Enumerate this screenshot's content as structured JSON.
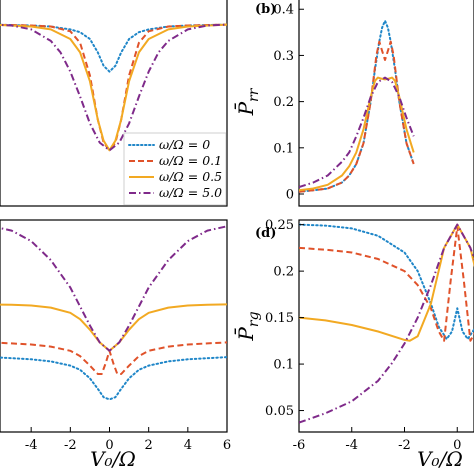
{
  "colors": {
    "omega_0": "#1f86c8",
    "omega_0_1": "#e0522a",
    "omega_0_5": "#f2a922",
    "omega_5_0": "#7f2a8a"
  },
  "chart_data": [
    {
      "panel": "a",
      "type": "line",
      "panel_label": "",
      "xlim": [
        -6,
        6
      ],
      "ylim": [
        0,
        1
      ],
      "xticks": [],
      "yticks": [],
      "xlabel": "",
      "ylabel": "",
      "legend_position": "bottom-right",
      "series": [
        {
          "name": "ω/Ω = 0",
          "style": "dotted",
          "color_key": "omega_0",
          "x": [
            -6,
            -4,
            -3,
            -2,
            -1.5,
            -1,
            -0.6,
            -0.3,
            0,
            0.3,
            0.6,
            1,
            1.5,
            2,
            3,
            4,
            6
          ],
          "y": [
            0.945,
            0.94,
            0.935,
            0.92,
            0.905,
            0.87,
            0.8,
            0.73,
            0.7,
            0.73,
            0.8,
            0.87,
            0.905,
            0.92,
            0.935,
            0.94,
            0.945
          ]
        },
        {
          "name": "ω/Ω = 0.1",
          "style": "dashed",
          "color_key": "omega_0_1",
          "x": [
            -6,
            -4,
            -3,
            -2,
            -1.5,
            -1,
            -0.6,
            -0.3,
            0,
            0.3,
            0.6,
            1,
            1.5,
            2,
            3,
            4,
            6
          ],
          "y": [
            0.945,
            0.94,
            0.935,
            0.91,
            0.85,
            0.68,
            0.45,
            0.33,
            0.29,
            0.33,
            0.45,
            0.68,
            0.85,
            0.91,
            0.935,
            0.94,
            0.945
          ]
        },
        {
          "name": "ω/Ω = 0.5",
          "style": "solid",
          "color_key": "omega_0_5",
          "x": [
            -6,
            -4,
            -3,
            -2,
            -1.5,
            -1,
            -0.6,
            -0.3,
            0,
            0.3,
            0.6,
            1,
            1.5,
            2,
            3,
            4,
            6
          ],
          "y": [
            0.945,
            0.935,
            0.92,
            0.87,
            0.8,
            0.65,
            0.45,
            0.34,
            0.29,
            0.34,
            0.45,
            0.65,
            0.8,
            0.87,
            0.92,
            0.935,
            0.945
          ]
        },
        {
          "name": "ω/Ω = 5.0",
          "style": "dashdot",
          "color_key": "omega_5_0",
          "x": [
            -6,
            -5,
            -4,
            -3,
            -2.5,
            -2,
            -1.5,
            -1,
            -0.5,
            0,
            0.5,
            1,
            1.5,
            2,
            2.5,
            3,
            4,
            5,
            6
          ],
          "y": [
            0.945,
            0.94,
            0.92,
            0.86,
            0.8,
            0.7,
            0.57,
            0.43,
            0.33,
            0.29,
            0.33,
            0.43,
            0.57,
            0.7,
            0.8,
            0.86,
            0.92,
            0.94,
            0.945
          ]
        }
      ]
    },
    {
      "panel": "b",
      "type": "line",
      "panel_label": "(b)",
      "xlim": [
        -6,
        6
      ],
      "ylim": [
        0,
        0.42
      ],
      "xticks": [],
      "yticks": [
        0,
        0.1,
        0.2,
        0.3,
        0.4
      ],
      "ytick_labels": [
        "0",
        "0.1",
        "0.2",
        "0.3",
        "0.4"
      ],
      "xlabel": "",
      "ylabel": "P̄",
      "ylabel_sub": "rr",
      "series": [
        {
          "name": "ω/Ω = 0",
          "style": "dotted",
          "color_key": "omega_0",
          "x": [
            -6,
            -5,
            -4,
            -3,
            -2.5,
            -2,
            -1.5,
            -1,
            -0.7,
            -0.4,
            -0.2,
            0,
            0.2,
            0.4,
            0.7,
            1,
            1.5,
            2
          ],
          "y": [
            0.005,
            0.008,
            0.012,
            0.025,
            0.04,
            0.065,
            0.11,
            0.2,
            0.27,
            0.33,
            0.36,
            0.375,
            0.36,
            0.33,
            0.27,
            0.2,
            0.11,
            0.065
          ]
        },
        {
          "name": "ω/Ω = 0.1",
          "style": "dashed",
          "color_key": "omega_0_1",
          "x": [
            -6,
            -5,
            -4,
            -3,
            -2.5,
            -2,
            -1.5,
            -1,
            -0.6,
            -0.4,
            -0.2,
            0,
            0.2,
            0.4,
            0.6,
            1,
            1.5,
            2
          ],
          "y": [
            0.005,
            0.008,
            0.012,
            0.025,
            0.04,
            0.065,
            0.11,
            0.2,
            0.3,
            0.33,
            0.31,
            0.29,
            0.31,
            0.33,
            0.3,
            0.2,
            0.11,
            0.065
          ]
        },
        {
          "name": "ω/Ω = 0.5",
          "style": "solid",
          "color_key": "omega_0_5",
          "x": [
            -6,
            -5,
            -4,
            -3,
            -2.5,
            -2,
            -1.5,
            -1,
            -0.7,
            -0.5,
            -0.3,
            0,
            0.3,
            0.5,
            0.7,
            1,
            1.5,
            2
          ],
          "y": [
            0.008,
            0.012,
            0.02,
            0.04,
            0.06,
            0.09,
            0.14,
            0.21,
            0.245,
            0.252,
            0.25,
            0.248,
            0.25,
            0.252,
            0.245,
            0.21,
            0.14,
            0.09
          ]
        },
        {
          "name": "ω/Ω = 5.0",
          "style": "dashdot",
          "color_key": "omega_5_0",
          "x": [
            -6,
            -5,
            -4,
            -3,
            -2.5,
            -2,
            -1.5,
            -1,
            -0.5,
            0,
            0.5,
            1,
            1.5,
            2
          ],
          "y": [
            0.015,
            0.025,
            0.04,
            0.07,
            0.09,
            0.125,
            0.165,
            0.21,
            0.242,
            0.252,
            0.242,
            0.21,
            0.165,
            0.125
          ]
        }
      ]
    },
    {
      "panel": "c",
      "type": "line",
      "panel_label": "",
      "xlim": [
        -6,
        6
      ],
      "ylim": [
        0,
        1
      ],
      "xticks": [
        -4,
        -2,
        0,
        2,
        4,
        6
      ],
      "xtick_labels": [
        "-4",
        "-2",
        "0",
        "2",
        "4",
        "6"
      ],
      "yticks": [],
      "xlabel": "V₀/Ω",
      "ylabel": "",
      "series": [
        {
          "name": "ω/Ω = 0",
          "style": "dotted",
          "color_key": "omega_0",
          "x": [
            -6,
            -5,
            -4,
            -3,
            -2,
            -1.5,
            -1,
            -0.6,
            -0.3,
            0,
            0.3,
            0.6,
            1,
            1.5,
            2,
            3,
            4,
            5,
            6
          ],
          "y": [
            0.35,
            0.345,
            0.34,
            0.33,
            0.31,
            0.29,
            0.25,
            0.2,
            0.16,
            0.15,
            0.16,
            0.2,
            0.25,
            0.29,
            0.31,
            0.33,
            0.34,
            0.345,
            0.35
          ]
        },
        {
          "name": "ω/Ω = 0.1",
          "style": "dashed",
          "color_key": "omega_0_1",
          "x": [
            -6,
            -5,
            -4,
            -3,
            -2,
            -1.5,
            -1,
            -0.6,
            -0.4,
            -0.2,
            0,
            0.2,
            0.4,
            0.6,
            1,
            1.5,
            2,
            3,
            4,
            5,
            6
          ],
          "y": [
            0.42,
            0.415,
            0.41,
            0.4,
            0.38,
            0.355,
            0.31,
            0.27,
            0.27,
            0.32,
            0.38,
            0.32,
            0.27,
            0.27,
            0.31,
            0.355,
            0.38,
            0.4,
            0.41,
            0.415,
            0.42
          ]
        },
        {
          "name": "ω/Ω = 0.5",
          "style": "solid",
          "color_key": "omega_0_5",
          "x": [
            -6,
            -5,
            -4,
            -3,
            -2,
            -1.5,
            -1,
            -0.5,
            0,
            0.5,
            1,
            1.5,
            2,
            3,
            4,
            5,
            6
          ],
          "y": [
            0.6,
            0.598,
            0.595,
            0.585,
            0.56,
            0.53,
            0.48,
            0.42,
            0.38,
            0.42,
            0.48,
            0.53,
            0.56,
            0.585,
            0.595,
            0.598,
            0.6
          ]
        },
        {
          "name": "ω/Ω = 5.0",
          "style": "dashdot",
          "color_key": "omega_5_0",
          "x": [
            -6,
            -5,
            -4,
            -3,
            -2,
            -1.5,
            -1,
            -0.5,
            0,
            0.5,
            1,
            1.5,
            2,
            3,
            4,
            5,
            6
          ],
          "y": [
            0.97,
            0.95,
            0.9,
            0.81,
            0.68,
            0.59,
            0.5,
            0.42,
            0.38,
            0.42,
            0.5,
            0.59,
            0.68,
            0.81,
            0.9,
            0.95,
            0.97
          ]
        }
      ]
    },
    {
      "panel": "d",
      "type": "line",
      "panel_label": "(d)",
      "xlim": [
        -6,
        2
      ],
      "ylim": [
        0.028,
        0.255
      ],
      "xticks": [
        -6,
        -4,
        -2,
        0
      ],
      "xtick_labels": [
        "-6",
        "-4",
        "-2",
        "0"
      ],
      "yticks": [
        0.05,
        0.1,
        0.15,
        0.2,
        0.25
      ],
      "ytick_labels": [
        "0.05",
        "0.1",
        "0.15",
        "0.2",
        "0.25"
      ],
      "xlabel": "V₀/Ω",
      "ylabel": "P̄",
      "ylabel_sub": "rg",
      "series": [
        {
          "name": "ω/Ω = 0",
          "style": "dotted",
          "color_key": "omega_0",
          "x": [
            -6,
            -5,
            -4,
            -3,
            -2,
            -1.5,
            -1,
            -0.7,
            -0.4,
            -0.2,
            0,
            0.2,
            0.4,
            0.7,
            1,
            1.5,
            2
          ],
          "y": [
            0.25,
            0.249,
            0.246,
            0.238,
            0.22,
            0.2,
            0.165,
            0.14,
            0.127,
            0.135,
            0.16,
            0.135,
            0.127,
            0.14,
            0.165,
            0.2,
            0.22
          ]
        },
        {
          "name": "ω/Ω = 0.1",
          "style": "dashed",
          "color_key": "omega_0_1",
          "x": [
            -6,
            -5,
            -4,
            -3,
            -2,
            -1.5,
            -1,
            -0.7,
            -0.5,
            -0.25,
            0,
            0.25,
            0.5,
            0.7,
            1,
            1.5,
            2
          ],
          "y": [
            0.225,
            0.223,
            0.22,
            0.213,
            0.2,
            0.185,
            0.16,
            0.135,
            0.125,
            0.19,
            0.248,
            0.19,
            0.125,
            0.135,
            0.16,
            0.185,
            0.2
          ]
        },
        {
          "name": "ω/Ω = 0.5",
          "style": "solid",
          "color_key": "omega_0_5",
          "x": [
            -6,
            -5,
            -4,
            -3,
            -2,
            -1.8,
            -1.5,
            -1,
            -0.5,
            0,
            0.5,
            1,
            1.5,
            1.8,
            2
          ],
          "y": [
            0.15,
            0.147,
            0.142,
            0.135,
            0.126,
            0.125,
            0.13,
            0.165,
            0.225,
            0.25,
            0.225,
            0.165,
            0.13,
            0.125,
            0.126
          ]
        },
        {
          "name": "ω/Ω = 5.0",
          "style": "dashdot",
          "color_key": "omega_5_0",
          "x": [
            -6,
            -5,
            -4,
            -3,
            -2.5,
            -2,
            -1.5,
            -1,
            -0.5,
            0,
            0.5,
            1,
            1.5,
            2
          ],
          "y": [
            0.037,
            0.047,
            0.06,
            0.082,
            0.1,
            0.122,
            0.15,
            0.185,
            0.225,
            0.25,
            0.225,
            0.185,
            0.15,
            0.122
          ]
        }
      ]
    }
  ]
}
